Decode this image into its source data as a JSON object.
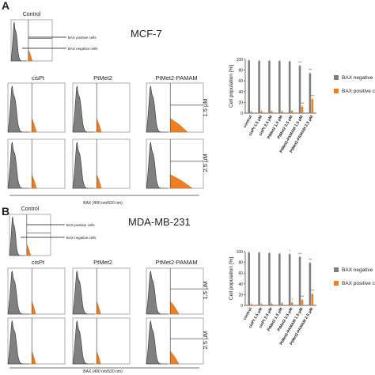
{
  "panels": [
    {
      "letter": "A",
      "cell_line": "MCF-7",
      "control_label": "Control",
      "annot_positive": "BAX positive cells",
      "annot_negative": "BAX negative cells",
      "sample_labels": [
        "cisPt",
        "PtMet2",
        "PtMet2-PAMAM"
      ],
      "row_labels": [
        "1.5 μM",
        "2.5 μM"
      ],
      "x_axis_label": "BAX (490 nm/520 nm)",
      "hist_color": "#808080",
      "pos_color": "#f07f22"
    },
    {
      "letter": "B",
      "cell_line": "MDA-MB-231",
      "control_label": "Control",
      "annot_positive": "BAX positive cells",
      "annot_negative": "BAX negative cells",
      "sample_labels": [
        "cisPt",
        "PtMet2",
        "PtMet2-PAMAM"
      ],
      "row_labels": [
        "1.5 μM",
        "2.5 μM"
      ],
      "x_axis_label": "BAX (490 nm/520 nm)",
      "hist_color": "#808080",
      "pos_color": "#f07f22"
    }
  ],
  "chart_data": [
    {
      "type": "bar",
      "title": "",
      "ylabel": "Cell population [%]",
      "ylim": [
        0,
        100
      ],
      "yticks": [
        0,
        20,
        40,
        60,
        80,
        100
      ],
      "categories": [
        "control",
        "cisPt 1.5 μM",
        "cisPt 2.5 μM",
        "PtMet2 1.5 μM",
        "PtMet2 2.5 μM",
        "PtMet2-PAMAM 1.5 μM",
        "PtMet2-PAMAM 2.5 μM"
      ],
      "series": [
        {
          "name": "BAX negative cells",
          "legend_text": "BAX negative",
          "color": "#7f7f7f",
          "values": [
            98,
            97,
            97,
            97,
            96,
            88,
            74
          ]
        },
        {
          "name": "BAX positive cells",
          "legend_text": "BAX positive c",
          "color": "#f07f22",
          "values": [
            2,
            3,
            3,
            3,
            4,
            12,
            26
          ]
        }
      ],
      "significance": [
        {
          "series": 0,
          "index": 5,
          "text": "***"
        },
        {
          "series": 0,
          "index": 6,
          "text": "***"
        },
        {
          "series": 1,
          "index": 5,
          "text": "***"
        },
        {
          "series": 1,
          "index": 6,
          "text": "***"
        }
      ],
      "legend": "right"
    },
    {
      "type": "bar",
      "title": "",
      "ylabel": "Cell population [%]",
      "ylim": [
        0,
        100
      ],
      "yticks": [
        0,
        20,
        40,
        60,
        80,
        100
      ],
      "categories": [
        "control",
        "cisPt 1.5 μM",
        "cisPt 2.5 μM",
        "PtMet2 1.5 μM",
        "PtMet2 2.5 μM",
        "PtMet2-PAMAM 1.5 μM",
        "PtMet2-PAMAM 2.5 μM"
      ],
      "series": [
        {
          "name": "BAX negative cells",
          "legend_text": "BAX negative",
          "color": "#7f7f7f",
          "values": [
            98,
            98,
            97,
            96,
            95,
            90,
            79
          ]
        },
        {
          "name": "BAX positive cells",
          "legend_text": "BAX positive c",
          "color": "#f07f22",
          "values": [
            2,
            2,
            3,
            4,
            5,
            10,
            21
          ]
        }
      ],
      "significance": [
        {
          "series": 0,
          "index": 4,
          "text": "*"
        },
        {
          "series": 0,
          "index": 5,
          "text": "***"
        },
        {
          "series": 0,
          "index": 6,
          "text": "***"
        },
        {
          "series": 1,
          "index": 4,
          "text": "*"
        },
        {
          "series": 1,
          "index": 5,
          "text": "***"
        },
        {
          "series": 1,
          "index": 6,
          "text": "***"
        }
      ],
      "legend": "right"
    }
  ]
}
